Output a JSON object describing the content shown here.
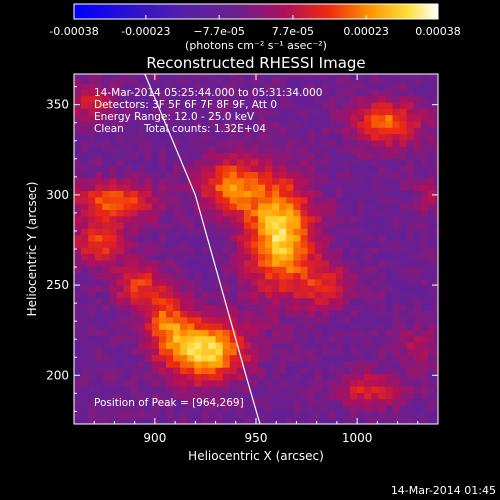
{
  "chart_data": {
    "type": "heatmap",
    "title": "Reconstructed RHESSI Image",
    "xlabel": "Heliocentric X (arcsec)",
    "ylabel": "Heliocentric Y (arcsec)",
    "xlim": [
      860,
      1040
    ],
    "ylim": [
      173,
      367
    ],
    "x_ticks": [
      900,
      950,
      1000
    ],
    "y_ticks": [
      200,
      250,
      300,
      350
    ],
    "x_tick_labels": [
      "900",
      "950",
      "1000"
    ],
    "y_tick_labels": [
      "200",
      "250",
      "300",
      "350"
    ],
    "colorbar": {
      "range": [
        -0.00038,
        0.00038
      ],
      "tick_values": [
        -0.00038,
        -0.00023,
        -7.7e-05,
        7.7e-05,
        0.00023,
        0.00038
      ],
      "tick_labels": [
        "-0.00038",
        "-0.00023",
        "−7.7e-05",
        "7.7e-05",
        "0.00023",
        "0.00038"
      ],
      "unit_label": "(photons cm⁻² s⁻¹ asec⁻²)",
      "colormap": "blue-purple-red-yellow-white"
    },
    "annotations": {
      "time_range": "14-Mar-2014 05:25:44.000 to 05:31:34.000",
      "detectors": "Detectors: 3F 5F 6F 7F 8F 9F, Att 0",
      "energy": "Energy Range: 12.0 - 25.0 keV",
      "method": "Clean",
      "counts": "Total counts: 1.32E+04",
      "peak": "Position of Peak = [964,269]"
    },
    "peak_position": [
      964,
      269
    ],
    "sources": [
      {
        "x": 925,
        "y": 214,
        "sx": 14,
        "sy": 12,
        "amp": 0.00036
      },
      {
        "x": 906,
        "y": 230,
        "sx": 8,
        "sy": 12,
        "amp": 0.0002
      },
      {
        "x": 892,
        "y": 250,
        "sx": 9,
        "sy": 9,
        "amp": 0.00018
      },
      {
        "x": 962,
        "y": 278,
        "sx": 12,
        "sy": 22,
        "amp": 0.00035
      },
      {
        "x": 938,
        "y": 305,
        "sx": 11,
        "sy": 11,
        "amp": 0.00026
      },
      {
        "x": 880,
        "y": 296,
        "sx": 14,
        "sy": 8,
        "amp": 0.00025
      },
      {
        "x": 872,
        "y": 273,
        "sx": 10,
        "sy": 8,
        "amp": 0.0002
      },
      {
        "x": 985,
        "y": 250,
        "sx": 9,
        "sy": 9,
        "amp": 0.00016
      },
      {
        "x": 1015,
        "y": 340,
        "sx": 12,
        "sy": 9,
        "amp": 0.00024
      },
      {
        "x": 1005,
        "y": 192,
        "sx": 12,
        "sy": 7,
        "amp": 0.00016
      },
      {
        "x": 868,
        "y": 352,
        "sx": 9,
        "sy": 7,
        "amp": 0.00014
      },
      {
        "x": 1030,
        "y": 215,
        "sx": 7,
        "sy": 9,
        "amp": 0.0001
      },
      {
        "x": 1035,
        "y": 300,
        "sx": 6,
        "sy": 8,
        "amp": 8e-05
      }
    ],
    "limb_curve": {
      "x": [
        895,
        920,
        945,
        952
      ],
      "y": [
        367,
        300,
        200,
        173
      ]
    }
  },
  "footer": {
    "timestamp": "14-Mar-2014 01:45"
  }
}
